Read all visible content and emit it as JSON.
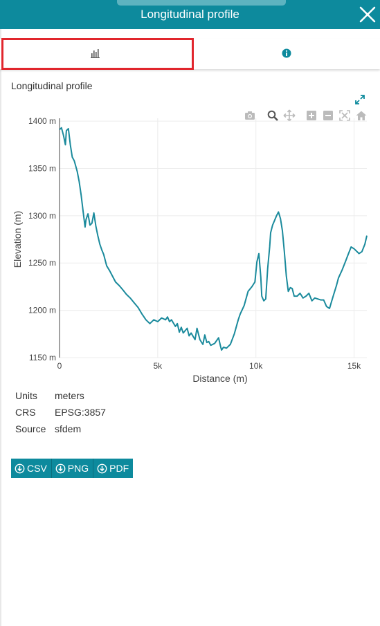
{
  "window": {
    "title": "Longitudinal profile"
  },
  "tabs": [
    {
      "name": "chart",
      "icon": "bar-chart-icon",
      "selected": true
    },
    {
      "name": "info",
      "icon": "info-icon",
      "selected": false
    }
  ],
  "panel": {
    "title": "Longitudinal profile"
  },
  "modebar": [
    "camera-icon",
    "zoom-icon",
    "pan-icon",
    "zoom-in-icon",
    "zoom-out-icon",
    "autoscale-icon",
    "home-icon"
  ],
  "meta": [
    {
      "key": "Units",
      "value": "meters"
    },
    {
      "key": "CRS",
      "value": "EPSG:3857"
    },
    {
      "key": "Source",
      "value": "sfdem"
    }
  ],
  "downloads": [
    {
      "label": "CSV",
      "icon": "download-icon"
    },
    {
      "label": "PNG",
      "icon": "download-icon"
    },
    {
      "label": "PDF",
      "icon": "download-icon"
    }
  ],
  "colors": {
    "accent": "#0d8a9d",
    "line": "#1a8a9c",
    "highlight": "#e1262d"
  },
  "chart_data": {
    "type": "line",
    "xlabel": "Distance (m)",
    "ylabel": "Elevation (m)",
    "xlim": [
      0,
      15650
    ],
    "ylim": [
      1150,
      1403
    ],
    "xticks": [
      0,
      5000,
      10000,
      15000
    ],
    "xtick_labels": [
      "0",
      "5k",
      "10k",
      "15k"
    ],
    "yticks": [
      1150,
      1200,
      1250,
      1300,
      1350,
      1400
    ],
    "ytick_labels": [
      "1150 m",
      "1200 m",
      "1250 m",
      "1300 m",
      "1350 m",
      "1400 m"
    ],
    "grid": true,
    "series": [
      {
        "x": [
          0,
          100,
          200,
          300,
          350,
          450,
          550,
          650,
          750,
          900,
          1000,
          1100,
          1200,
          1300,
          1350,
          1450,
          1550,
          1650,
          1750,
          1850,
          1950,
          2050,
          2150,
          2250,
          2400,
          2550,
          2700,
          2850,
          3050,
          3250,
          3400,
          3600,
          3800,
          4000,
          4200,
          4400,
          4600,
          4800,
          5000,
          5200,
          5400,
          5500,
          5600,
          5700,
          5900,
          6000,
          6100,
          6200,
          6300,
          6500,
          6600,
          6700,
          6900,
          7000,
          7150,
          7300,
          7400,
          7500,
          7600,
          7700,
          7900,
          8100,
          8200,
          8250,
          8350,
          8500,
          8700,
          8900,
          9100,
          9200,
          9400,
          9600,
          9800,
          9950,
          10050,
          10150,
          10250,
          10300,
          10400,
          10500,
          10600,
          10700,
          10750,
          10850,
          10950,
          11050,
          11150,
          11250,
          11350,
          11450,
          11550,
          11650,
          11750,
          11850,
          11950,
          12100,
          12250,
          12400,
          12550,
          12700,
          12850,
          13000,
          13150,
          13300,
          13450,
          13600,
          13750,
          13850,
          13950,
          14100,
          14200,
          14400,
          14550,
          14700,
          14850,
          15000,
          15250,
          15400,
          15550,
          15650
        ],
        "y": [
          1391,
          1393,
          1385,
          1375,
          1390,
          1392,
          1375,
          1362,
          1358,
          1347,
          1336,
          1322,
          1305,
          1288,
          1296,
          1302,
          1290,
          1292,
          1303,
          1289,
          1279,
          1270,
          1264,
          1259,
          1247,
          1242,
          1236,
          1230,
          1226,
          1221,
          1217,
          1213,
          1208,
          1203,
          1196,
          1190,
          1186,
          1190,
          1188,
          1192,
          1190,
          1193,
          1188,
          1190,
          1183,
          1186,
          1177,
          1182,
          1176,
          1181,
          1173,
          1176,
          1169,
          1181,
          1169,
          1164,
          1174,
          1166,
          1167,
          1163,
          1165,
          1171,
          1162,
          1158,
          1161,
          1160,
          1164,
          1175,
          1190,
          1196,
          1205,
          1220,
          1225,
          1230,
          1251,
          1260,
          1235,
          1215,
          1210,
          1212,
          1244,
          1267,
          1282,
          1290,
          1295,
          1300,
          1304,
          1297,
          1284,
          1262,
          1236,
          1220,
          1224,
          1223,
          1215,
          1215,
          1218,
          1213,
          1215,
          1218,
          1210,
          1213,
          1212,
          1211,
          1211,
          1204,
          1202,
          1209,
          1216,
          1226,
          1234,
          1243,
          1251,
          1259,
          1267,
          1265,
          1260,
          1262,
          1270,
          1279
        ]
      }
    ]
  }
}
